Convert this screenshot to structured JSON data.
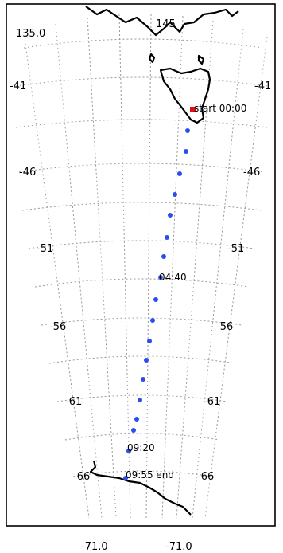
{
  "map": {
    "lon_labels": {
      "top_left": "135.0",
      "top_center": "145",
      "bottom_left": "-71.0",
      "bottom_right": "-71.0"
    },
    "lat_labels": [
      {
        "value": "-41",
        "left": "-41",
        "right": "-41"
      },
      {
        "value": "-46",
        "left": "-46",
        "right": "-46"
      },
      {
        "value": "-51",
        "left": "-51",
        "right": "-51"
      },
      {
        "value": "-56",
        "left": "-56",
        "right": "-56"
      },
      {
        "value": "-61",
        "left": "-61",
        "right": "-61"
      },
      {
        "value": "-66",
        "left": "-66",
        "right": "-66"
      }
    ],
    "track_labels": {
      "start": "start 00:00",
      "mid1": "04:40",
      "mid2": "09:20",
      "end": "09:55 end"
    },
    "colors": {
      "track": "#2b4df0",
      "start": "#e01010",
      "coast": "#000000",
      "grid": "#9a9a9a"
    }
  }
}
